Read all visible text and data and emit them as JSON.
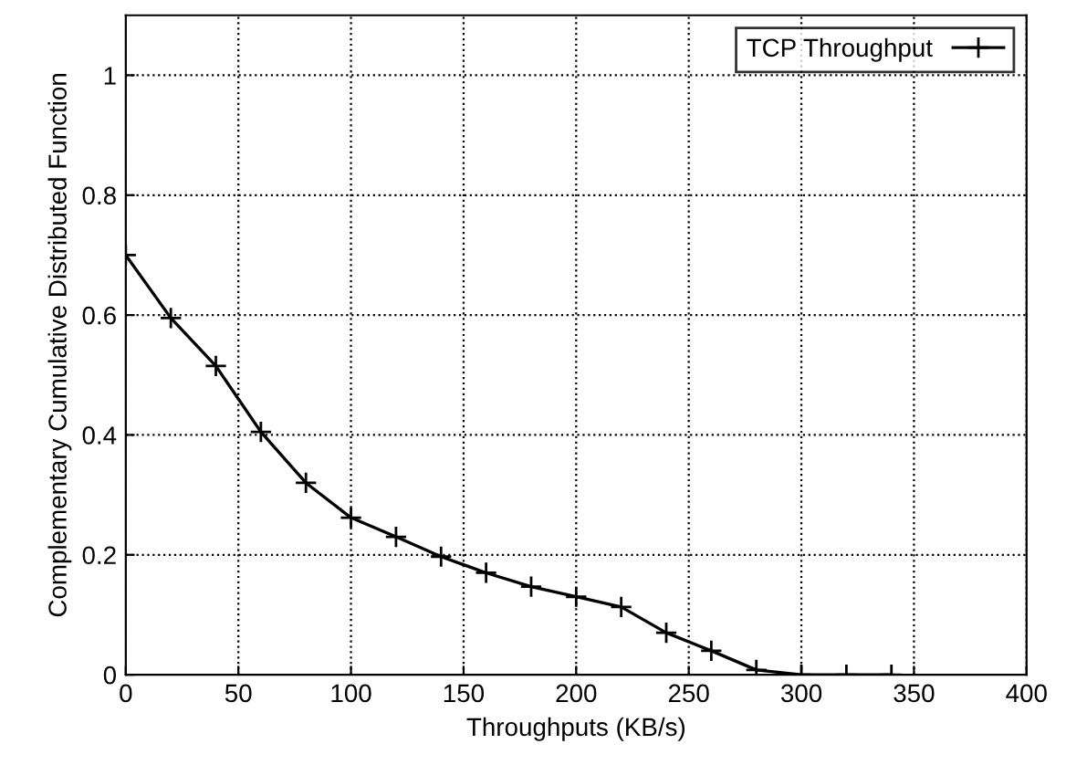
{
  "chart_data": {
    "type": "line",
    "xlabel": "Throughputs (KB/s)",
    "ylabel": "Complementary Cumulative Distributed Function",
    "x": [
      0,
      20,
      40,
      60,
      80,
      100,
      120,
      140,
      160,
      180,
      200,
      220,
      240,
      260,
      280,
      300,
      320,
      340
    ],
    "series": [
      {
        "name": "TCP Throughput",
        "color": "#000000",
        "values": [
          0.7,
          0.595,
          0.515,
          0.405,
          0.32,
          0.262,
          0.23,
          0.197,
          0.17,
          0.147,
          0.13,
          0.113,
          0.07,
          0.04,
          0.008,
          0,
          0,
          0
        ]
      }
    ],
    "xlim": [
      0,
      400
    ],
    "xticks": [
      0,
      50,
      100,
      150,
      200,
      250,
      300,
      350,
      400
    ],
    "ylim": [
      0,
      1.1
    ],
    "yticks": [
      0,
      0.2,
      0.4,
      0.6,
      0.8,
      1
    ],
    "grid": true,
    "legend": "top right",
    "marker": "cross",
    "line_style": "solid"
  }
}
